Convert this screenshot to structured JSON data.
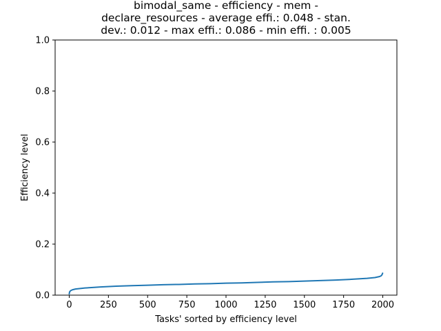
{
  "chart_data": {
    "type": "line",
    "title_lines": [
      "bimodal_same - efficiency - mem -",
      "declare_resources - average effi.: 0.048 - stan.",
      "dev.: 0.012 - max effi.: 0.086 - min effi. : 0.005"
    ],
    "xlabel": "Tasks' sorted by efficiency level",
    "ylabel": "Efficiency level",
    "xlim": [
      -90,
      2090
    ],
    "ylim": [
      0,
      1.0
    ],
    "xticks": [
      0,
      250,
      500,
      750,
      1000,
      1250,
      1500,
      1750,
      2000
    ],
    "xtick_labels": [
      "0",
      "250",
      "500",
      "750",
      "1000",
      "1250",
      "1500",
      "1750",
      "2000"
    ],
    "yticks": [
      0.0,
      0.2,
      0.4,
      0.6,
      0.8,
      1.0
    ],
    "ytick_labels": [
      "0.0",
      "0.2",
      "0.4",
      "0.6",
      "0.8",
      "1.0"
    ],
    "grid": false,
    "line_color": "#1f77b4",
    "series": [
      {
        "x": [
          0,
          2,
          5,
          10,
          20,
          40,
          70,
          100,
          150,
          200,
          300,
          400,
          500,
          600,
          700,
          800,
          900,
          1000,
          1100,
          1200,
          1300,
          1400,
          1500,
          1600,
          1700,
          1800,
          1900,
          1950,
          1980,
          1990,
          1995,
          1999
        ],
        "y": [
          0.005,
          0.012,
          0.015,
          0.018,
          0.021,
          0.024,
          0.026,
          0.028,
          0.03,
          0.032,
          0.035,
          0.037,
          0.039,
          0.041,
          0.042,
          0.044,
          0.045,
          0.047,
          0.048,
          0.05,
          0.052,
          0.053,
          0.055,
          0.057,
          0.059,
          0.062,
          0.066,
          0.069,
          0.073,
          0.076,
          0.08,
          0.086
        ]
      }
    ]
  }
}
